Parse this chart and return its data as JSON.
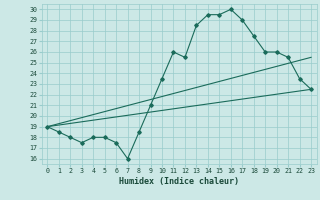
{
  "title": "",
  "xlabel": "Humidex (Indice chaleur)",
  "ylabel": "",
  "bg_color": "#cce8e6",
  "grid_color": "#99cccc",
  "line_color": "#1a6b5a",
  "x_ticks": [
    0,
    1,
    2,
    3,
    4,
    5,
    6,
    7,
    8,
    9,
    10,
    11,
    12,
    13,
    14,
    15,
    16,
    17,
    18,
    19,
    20,
    21,
    22,
    23
  ],
  "y_ticks": [
    16,
    17,
    18,
    19,
    20,
    21,
    22,
    23,
    24,
    25,
    26,
    27,
    28,
    29,
    30
  ],
  "xlim": [
    -0.5,
    23.5
  ],
  "ylim": [
    15.5,
    30.5
  ],
  "line1_x": [
    0,
    1,
    2,
    3,
    4,
    5,
    6,
    7,
    8,
    9,
    10,
    11,
    12,
    13,
    14,
    15,
    16,
    17,
    18,
    19,
    20,
    21,
    22,
    23
  ],
  "line1_y": [
    19.0,
    18.5,
    18.0,
    17.5,
    18.0,
    18.0,
    17.5,
    16.0,
    18.5,
    21.0,
    23.5,
    26.0,
    25.5,
    28.5,
    29.5,
    29.5,
    30.0,
    29.0,
    27.5,
    26.0,
    26.0,
    25.5,
    23.5,
    22.5
  ],
  "line2_x": [
    0,
    23
  ],
  "line2_y": [
    19.0,
    22.5
  ],
  "line3_x": [
    0,
    23
  ],
  "line3_y": [
    19.0,
    25.5
  ]
}
